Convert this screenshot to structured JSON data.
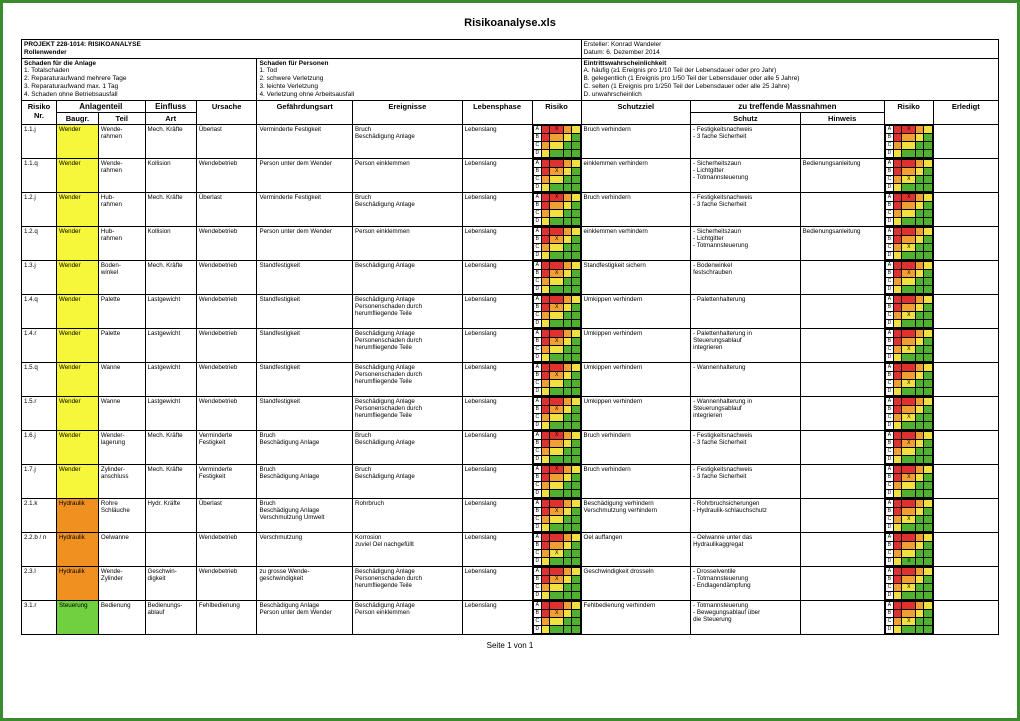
{
  "doc_title": "Risikoanalyse.xls",
  "footer": "Seite 1 von 1",
  "header": {
    "project_title": "PROJEKT 228-1014: RISIKOANALYSE",
    "project_sub": "Rollenwender",
    "creator": "Ersteller: Konrad Wandeler",
    "date": "Datum: 6. Dezember 2014",
    "block1_title": "Schaden für die Anlage",
    "block1_lines": [
      "1. Totalschaden",
      "2. Reparaturaufwand mehrere Tage",
      "3. Reparaturaufwand max. 1 Tag",
      "4. Schaden ohne Betriebsausfall"
    ],
    "block2_title": "Schaden für Personen",
    "block2_lines": [
      "1. Tod",
      "2. schwere Verletzung",
      "3. leichte Verletzung",
      "4. Verletzung ohne Arbeitsausfall"
    ],
    "block3_title": "Eintrittswahrscheinlichkeit",
    "block3_lines": [
      "A. häufig (≥1 Ereignis pro 1/10 Teil der Lebensdauer oder pro Jahr)",
      "B. gelegentlich (1 Ereignis pro 1/50 Teil der Lebensdauer oder alle 5 Jahre)",
      "C. selten (1 Ereignis pro 1/250 Teil der Lebensdauer oder alle 25 Jahre)",
      "D. unwahrscheinlich"
    ]
  },
  "columns": {
    "nr": "Risiko Nr.",
    "anlagenteil": "Anlagenteil",
    "baugr": "Baugr.",
    "teil": "Teil",
    "einfluss": "Einfluss",
    "art": "Art",
    "ursache": "Ursache",
    "gefaehr": "Gefährdungsart",
    "ereignis": "Ereignisse",
    "phase": "Lebensphase",
    "risiko": "Risiko",
    "schutzziel": "Schutzziel",
    "massnahmen": "zu treffende Massnahmen",
    "schutz": "Schutz",
    "hinweis": "Hinweis",
    "risiko2": "Risiko",
    "erledigt": "Erledigt"
  },
  "colors": {
    "wender": "#f7f73a",
    "hydraulik": "#f09020",
    "steuerung": "#70d040"
  },
  "rows": [
    {
      "nr": "1.1.j",
      "bg": "wender",
      "baugr": "Wender",
      "teil": "Wende-\nrahmen",
      "art": "Mech. Kräfte",
      "ursache": "Überlast",
      "gef": "Verminderte Festigkeit",
      "er": "Bruch\nBeschädigung Anlage",
      "ph": "Lebenslang",
      "r1": "A",
      "ziel": "Bruch verhindern",
      "schutz": "- Festigkeitsnachweis\n- 3 fache Sicherheit",
      "hin": "",
      "r2": "A"
    },
    {
      "nr": "1.1.q",
      "bg": "wender",
      "baugr": "Wender",
      "teil": "Wende-\nrahmen",
      "art": "Kollision",
      "ursache": "Wendebetrieb",
      "gef": "Person unter dem Wender",
      "er": "Person einklemmen",
      "ph": "Lebenslang",
      "r1": "B",
      "ziel": "einklemmen verhindern",
      "schutz": "- Sicherheitszaun\n- Lichtgitter\n- Totmannsteuerung",
      "hin": "Bedienungsanleitung",
      "r2": "C"
    },
    {
      "nr": "1.2.j",
      "bg": "wender",
      "baugr": "Wender",
      "teil": "Hub-\nrahmen",
      "art": "Mech. Kräfte",
      "ursache": "Überlast",
      "gef": "Verminderte Festigkeit",
      "er": "Bruch\nBeschädigung Anlage",
      "ph": "Lebenslang",
      "r1": "A",
      "ziel": "Bruch verhindern",
      "schutz": "- Festigkeitsnachweis\n- 3 fache Sicherheit",
      "hin": "",
      "r2": "A"
    },
    {
      "nr": "1.2.q",
      "bg": "wender",
      "baugr": "Wender",
      "teil": "Hub-\nrahmen",
      "art": "Kollision",
      "ursache": "Wendebetrieb",
      "gef": "Person unter dem Wender",
      "er": "Person einklemmen",
      "ph": "Lebenslang",
      "r1": "B",
      "ziel": "einklemmen verhindern",
      "schutz": "- Sicherheitszaun\n- Lichtgitter\n- Totmannsteuerung",
      "hin": "Bedienungsanleitung",
      "r2": "C"
    },
    {
      "nr": "1.3.j",
      "bg": "wender",
      "baugr": "Wender",
      "teil": "Boden-\nwinkel",
      "art": "Mech. Kräfte",
      "ursache": "Wendebetrieb",
      "gef": "Standfestigkeit",
      "er": "Beschädigung Anlage",
      "ph": "Lebenslang",
      "r1": "B",
      "ziel": "Standfestigkeit sichern",
      "schutz": "- Bodenwinkel\n  festschrauben",
      "hin": "",
      "r2": "B"
    },
    {
      "nr": "1.4.q",
      "bg": "wender",
      "baugr": "Wender",
      "teil": "Palette",
      "art": "Lastgewicht",
      "ursache": "Wendebetrieb",
      "gef": "Standfestigkeit",
      "er": "Beschädigung Anlage\nPersonenschaden durch\nherumfliegende Teile",
      "ph": "Lebenslang",
      "r1": "B",
      "ziel": "Umkippen verhindern",
      "schutz": "- Palettenhalterung",
      "hin": "",
      "r2": "C"
    },
    {
      "nr": "1.4.r",
      "bg": "wender",
      "baugr": "Wender",
      "teil": "Palette",
      "art": "Lastgewicht",
      "ursache": "Wendebetrieb",
      "gef": "Standfestigkeit",
      "er": "Beschädigung Anlage\nPersonenschaden durch\nherumfliegende Teile",
      "ph": "Lebenslang",
      "r1": "B",
      "ziel": "Umkippen verhindern",
      "schutz": "- Palettenhalterung in\n  Steuerungsablauf\n  integrieren",
      "hin": "",
      "r2": "C"
    },
    {
      "nr": "1.5.q",
      "bg": "wender",
      "baugr": "Wender",
      "teil": "Wanne",
      "art": "Lastgewicht",
      "ursache": "Wendebetrieb",
      "gef": "Standfestigkeit",
      "er": "Beschädigung Anlage\nPersonenschaden durch\nherumfliegende Teile",
      "ph": "Lebenslang",
      "r1": "B",
      "ziel": "Umkippen verhindern",
      "schutz": "- Wannenhalterung",
      "hin": "",
      "r2": "C"
    },
    {
      "nr": "1.5.r",
      "bg": "wender",
      "baugr": "Wender",
      "teil": "Wanne",
      "art": "Lastgewicht",
      "ursache": "Wendebetrieb",
      "gef": "Standfestigkeit",
      "er": "Beschädigung Anlage\nPersonenschaden durch\nherumfliegende Teile",
      "ph": "Lebenslang",
      "r1": "B",
      "ziel": "Umkippen verhindern",
      "schutz": "- Wannenhalterung in\n  Steuerungsablauf\n  integrieren",
      "hin": "",
      "r2": "C"
    },
    {
      "nr": "1.6.j",
      "bg": "wender",
      "baugr": "Wender",
      "teil": "Wender-\nlagerung",
      "art": "Mech. Kräfte",
      "ursache": "Verminderte Festigkeit",
      "gef": "Bruch\nBeschädigung Anlage",
      "er": "Bruch\nBeschädigung Anlage",
      "ph": "Lebenslang",
      "r1": "A",
      "ziel": "Bruch verhindern",
      "schutz": "- Festigkeitsnachweis\n- 3 fache Sicherheit",
      "hin": "",
      "r2": "B"
    },
    {
      "nr": "1.7.j",
      "bg": "wender",
      "baugr": "Wender",
      "teil": "Zylinder-\nanschluss",
      "art": "Mech. Kräfte",
      "ursache": "Verminderte Festigkeit",
      "gef": "Bruch\nBeschädigung Anlage",
      "er": "Bruch\nBeschädigung Anlage",
      "ph": "Lebenslang",
      "r1": "A",
      "ziel": "Bruch verhindern",
      "schutz": "- Festigkeitsnachweis\n- 3 fache Sicherheit",
      "hin": "",
      "r2": "B"
    },
    {
      "nr": "2.1.k",
      "bg": "hydraulik",
      "baugr": "Hydraulik",
      "teil": "Rohre\nSchläuche",
      "art": "Hydr. Kräfte",
      "ursache": "Überlast",
      "gef": "Bruch\nBeschädigung Anlage\nVerschmutzung Umwelt",
      "er": "Rohrbruch",
      "ph": "Lebenslang",
      "r1": "B",
      "ziel": "Beschädigung verhindern\nVerschmutzung verhindern",
      "schutz": "- Rohrbruchsicherungen\n- Hydraulik-schlauchschutz",
      "hin": "",
      "r2": "C"
    },
    {
      "nr": "2.2.b / n",
      "bg": "hydraulik",
      "baugr": "Hydraulik",
      "teil": "Oelwanne",
      "art": "",
      "ursache": "Wendebetrieb",
      "gef": "Verschmutzung",
      "er": "Korrosion\nzuviel Oel nachgefüllt",
      "ph": "Lebenslang",
      "r1": "C",
      "ziel": "Oel auffangen",
      "schutz": "- Oelwanne unter das\n  Hydraulikaggregat",
      "hin": "",
      "r2": "D"
    },
    {
      "nr": "2.3.l",
      "bg": "hydraulik",
      "baugr": "Hydraulik",
      "teil": "Wende-\nZylinder",
      "art": "Geschwin-\ndigkeit",
      "ursache": "Wendebetrieb",
      "gef": "zu grosse Wende-\ngeschwindigkeit",
      "er": "Beschädigung Anlage\nPersonenschaden durch\nherumfliegende Teile",
      "ph": "Lebenslang",
      "r1": "B",
      "ziel": "Geschwindigkeit drosseln",
      "schutz": "- Drosselventile\n- Totmannsteuerung\n- Endlagendämpfung",
      "hin": "",
      "r2": "C"
    },
    {
      "nr": "3.1.r",
      "bg": "steuerung",
      "baugr": "Steuerung",
      "teil": "Bedienung",
      "art": "Bedienungs-\nablauf",
      "ursache": "Fehlbedienung",
      "gef": "Beschädigung Anlage\nPerson unter dem Wender",
      "er": "Beschädigung Anlage\nPerson einklemmen",
      "ph": "Lebenslang",
      "r1": "B",
      "ziel": "Fehlbedienung verhindern",
      "schutz": "- Totmannsteuerung\n- Bewegungsablauf über\n  die Steuerung",
      "hin": "",
      "r2": "C"
    }
  ]
}
